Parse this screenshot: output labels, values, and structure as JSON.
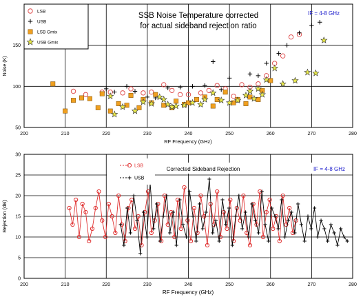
{
  "chart_data": [
    {
      "type": "scatter",
      "title": "SSB Noise Temperature corrected",
      "subtitle": "for actual sideband rejection ratio",
      "annotation": "IF = 4-8 GHz",
      "xlabel": "RF Frequency (GHz)",
      "ylabel": "Noise (K)",
      "xlim": [
        200,
        280
      ],
      "ylim": [
        50,
        200
      ],
      "xticks": [
        "200",
        "210",
        "220",
        "230",
        "240",
        "250",
        "260",
        "270",
        "280"
      ],
      "yticks": [
        "50",
        "100",
        "150"
      ],
      "grid": true,
      "legend_position": "top-left",
      "series": [
        {
          "name": "LSB",
          "marker": "circle",
          "color": "#e05050",
          "x": [
            212,
            215,
            219,
            221,
            224,
            226,
            229,
            231,
            234,
            236,
            238,
            240,
            243,
            245,
            247,
            249,
            251,
            253,
            255,
            257,
            259,
            261,
            263,
            265,
            267
          ],
          "y": [
            94,
            90,
            93,
            93,
            92,
            97,
            92,
            93,
            102,
            95,
            90,
            90,
            92,
            95,
            101,
            97,
            88,
            102,
            99,
            103,
            113,
            128,
            137,
            160,
            163
          ]
        },
        {
          "name": "USB",
          "marker": "plus",
          "color": "#000000",
          "x": [
            220,
            222,
            225,
            227,
            230,
            232,
            235,
            238,
            241,
            244,
            246,
            248,
            250,
            252,
            255,
            257,
            259,
            262,
            264,
            267,
            270,
            272
          ],
          "y": [
            97,
            93,
            100,
            94,
            87,
            86,
            98,
            99,
            100,
            101,
            130,
            96,
            110,
            83,
            115,
            113,
            128,
            140,
            150,
            165,
            174,
            178
          ]
        },
        {
          "name": "LSB Gmix",
          "marker": "square",
          "color": "#f0a020",
          "x": [
            207,
            210,
            212,
            214,
            216,
            218,
            219,
            221,
            223,
            225,
            226,
            228,
            229,
            231,
            232,
            234,
            236,
            237,
            239,
            240,
            242,
            244,
            246,
            247,
            249,
            251,
            252,
            254,
            255,
            257,
            258,
            260
          ],
          "y": [
            103,
            70,
            83,
            86,
            85,
            74,
            91,
            70,
            79,
            77,
            89,
            74,
            84,
            80,
            90,
            77,
            74,
            82,
            78,
            80,
            84,
            87,
            76,
            84,
            93,
            80,
            84,
            79,
            87,
            84,
            95,
            107
          ]
        },
        {
          "name": "USB Gmix",
          "marker": "star",
          "color": "#e8e84a",
          "x": [
            221,
            222,
            224,
            227,
            229,
            231,
            233,
            234,
            235,
            236,
            237,
            239,
            241,
            243,
            244,
            246,
            248,
            250,
            252,
            254,
            255,
            256,
            257,
            258,
            259,
            261,
            263,
            266,
            269,
            271,
            273
          ],
          "y": [
            88,
            66,
            75,
            70,
            81,
            79,
            87,
            84,
            78,
            75,
            76,
            77,
            80,
            78,
            84,
            92,
            83,
            80,
            83,
            89,
            94,
            85,
            97,
            90,
            108,
            122,
            103,
            107,
            117,
            116,
            156
          ]
        }
      ]
    },
    {
      "type": "line",
      "title": "Corrected Sideband Rejection",
      "annotation": "IF = 4-8 GHz",
      "xlabel": "RF Frequency (GHz)",
      "ylabel": "Rejection (dB)",
      "xlim": [
        200,
        280
      ],
      "ylim": [
        0,
        30
      ],
      "xticks": [
        "200",
        "210",
        "220",
        "230",
        "240",
        "250",
        "260",
        "270",
        "280"
      ],
      "yticks": [
        "0",
        "5",
        "10",
        "15",
        "20",
        "25",
        "30"
      ],
      "grid": true,
      "legend_position": "top-left",
      "series": [
        {
          "name": "LSB",
          "marker": "circle",
          "color": "#e03030",
          "x": [
            211,
            211.8,
            212.6,
            213.4,
            214.2,
            215,
            215.8,
            216.6,
            217.4,
            218.2,
            219,
            219.8,
            220.6,
            221.4,
            222.2,
            223,
            223.8,
            224.6,
            225.4,
            226.2,
            227,
            227.8,
            228.6,
            229.4,
            230.2,
            231,
            231.8,
            232.6,
            233.4,
            234.2,
            235,
            235.8,
            236.6,
            237.4,
            238.2,
            239,
            239.8,
            240.6,
            241.4,
            242.2,
            243,
            243.8,
            244.6,
            245.4,
            246.2,
            247,
            247.8,
            248.6,
            249.4,
            250.2,
            251,
            251.8,
            252.6,
            253.4,
            254.2,
            255,
            255.8,
            256.6,
            257.4,
            258.2,
            259,
            259.8,
            260.6,
            261.4,
            262.2,
            263,
            263.8,
            264.6,
            265.4,
            266.2
          ],
          "y": [
            17,
            13,
            19,
            10,
            18,
            16,
            9,
            12,
            17,
            21,
            14,
            10,
            18,
            15,
            11,
            20,
            13,
            9,
            17,
            19,
            12,
            15,
            8,
            16,
            21,
            11,
            14,
            18,
            9,
            20,
            13,
            16,
            10,
            19,
            12,
            22,
            14,
            9,
            17,
            11,
            20,
            15,
            8,
            18,
            13,
            21,
            10,
            16,
            12,
            19,
            9,
            17,
            14,
            20,
            11,
            8,
            18,
            13,
            21,
            10,
            16,
            19,
            12,
            15,
            9,
            20,
            13,
            17,
            11,
            14
          ]
        },
        {
          "name": "USB",
          "marker": "plus",
          "color": "#000000",
          "x": [
            223.5,
            224.3,
            225.1,
            225.9,
            226.7,
            227.5,
            228.3,
            229.1,
            229.9,
            230.7,
            231.5,
            232.3,
            233.1,
            233.9,
            234.7,
            235.5,
            236.3,
            237.1,
            237.9,
            238.7,
            239.5,
            240.3,
            241.1,
            241.9,
            242.7,
            243.5,
            244.3,
            245.1,
            245.9,
            246.7,
            247.5,
            248.3,
            249.1,
            249.9,
            250.7,
            251.5,
            252.3,
            253.1,
            253.9,
            254.7,
            255.5,
            256.3,
            257.1,
            257.9,
            258.7,
            259.5,
            260.3,
            261.1,
            261.9,
            262.7,
            263.5,
            264.3,
            265.1,
            265.9,
            266.7,
            267.5,
            268.3,
            269.1,
            269.9,
            270.7,
            271.5,
            272.3,
            273.1,
            273.9,
            274.7,
            275.5,
            276.3,
            277.1,
            277.9,
            278.7
          ],
          "y": [
            13,
            8,
            17,
            11,
            20,
            14,
            6,
            16,
            10,
            23,
            12,
            18,
            9,
            15,
            20,
            11,
            16,
            8,
            19,
            13,
            10,
            21,
            15,
            9,
            18,
            12,
            16,
            24,
            11,
            14,
            9,
            19,
            13,
            17,
            8,
            15,
            20,
            12,
            16,
            10,
            18,
            14,
            11,
            21,
            13,
            9,
            17,
            15,
            12,
            19,
            10,
            14,
            16,
            11,
            18,
            13,
            9,
            15,
            12,
            17,
            10,
            14,
            12,
            9,
            13,
            11,
            8,
            12,
            10,
            9
          ]
        }
      ]
    }
  ]
}
